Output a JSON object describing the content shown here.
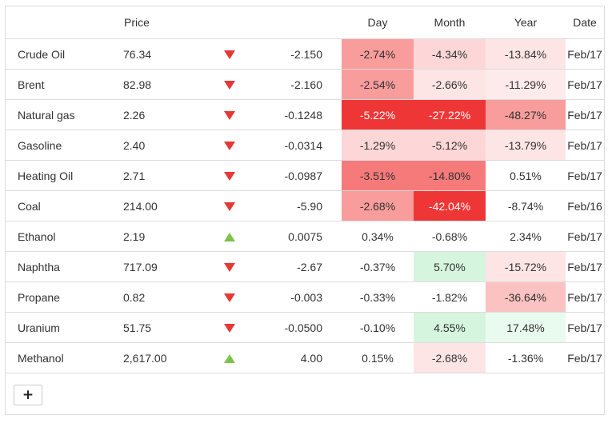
{
  "headers": {
    "price": "Price",
    "day": "Day",
    "month": "Month",
    "year": "Year",
    "date": "Date"
  },
  "colors": {
    "down": "#e53935",
    "up": "#7cc34a",
    "text_on_dark": "#ffffff",
    "text": "#333333"
  },
  "rows": [
    {
      "name": "Crude Oil",
      "price": "76.34",
      "direction": "down",
      "change": "-2.150",
      "day": {
        "value": "-2.74%",
        "bg": "#f99c9c"
      },
      "month": {
        "value": "-4.34%",
        "bg": "#fdd7d7"
      },
      "year": {
        "value": "-13.84%",
        "bg": "#fde5e5"
      },
      "date": "Feb/17"
    },
    {
      "name": "Brent",
      "price": "82.98",
      "direction": "down",
      "change": "-2.160",
      "day": {
        "value": "-2.54%",
        "bg": "#f99c9c"
      },
      "month": {
        "value": "-2.66%",
        "bg": "#fde5e5"
      },
      "year": {
        "value": "-11.29%",
        "bg": "#fdeaea"
      },
      "date": "Feb/17"
    },
    {
      "name": "Natural gas",
      "price": "2.26",
      "direction": "down",
      "change": "-0.1248",
      "day": {
        "value": "-5.22%",
        "bg": "#ef3636"
      },
      "month": {
        "value": "-27.22%",
        "bg": "#ef3636"
      },
      "year": {
        "value": "-48.27%",
        "bg": "#f99c9c"
      },
      "date": "Feb/17"
    },
    {
      "name": "Gasoline",
      "price": "2.40",
      "direction": "down",
      "change": "-0.0314",
      "day": {
        "value": "-1.29%",
        "bg": "#fdd7d7"
      },
      "month": {
        "value": "-5.12%",
        "bg": "#fdd7d7"
      },
      "year": {
        "value": "-13.79%",
        "bg": "#fde5e5"
      },
      "date": "Feb/17"
    },
    {
      "name": "Heating Oil",
      "price": "2.71",
      "direction": "down",
      "change": "-0.0987",
      "day": {
        "value": "-3.51%",
        "bg": "#f77a7a"
      },
      "month": {
        "value": "-14.80%",
        "bg": "#f77a7a"
      },
      "year": {
        "value": "0.51%",
        "bg": ""
      },
      "date": "Feb/17"
    },
    {
      "name": "Coal",
      "price": "214.00",
      "direction": "down",
      "change": "-5.90",
      "day": {
        "value": "-2.68%",
        "bg": "#f99c9c"
      },
      "month": {
        "value": "-42.04%",
        "bg": "#ef3636"
      },
      "year": {
        "value": "-8.74%",
        "bg": ""
      },
      "date": "Feb/16"
    },
    {
      "name": "Ethanol",
      "price": "2.19",
      "direction": "up",
      "change": "0.0075",
      "day": {
        "value": "0.34%",
        "bg": ""
      },
      "month": {
        "value": "-0.68%",
        "bg": ""
      },
      "year": {
        "value": "2.34%",
        "bg": ""
      },
      "date": "Feb/17"
    },
    {
      "name": "Naphtha",
      "price": "717.09",
      "direction": "down",
      "change": "-2.67",
      "day": {
        "value": "-0.37%",
        "bg": ""
      },
      "month": {
        "value": "5.70%",
        "bg": "#d6f5de"
      },
      "year": {
        "value": "-15.72%",
        "bg": "#fde5e5"
      },
      "date": "Feb/17"
    },
    {
      "name": "Propane",
      "price": "0.82",
      "direction": "down",
      "change": "-0.003",
      "day": {
        "value": "-0.33%",
        "bg": ""
      },
      "month": {
        "value": "-1.82%",
        "bg": ""
      },
      "year": {
        "value": "-36.64%",
        "bg": "#fbc2c2"
      },
      "date": "Feb/17"
    },
    {
      "name": "Uranium",
      "price": "51.75",
      "direction": "down",
      "change": "-0.0500",
      "day": {
        "value": "-0.10%",
        "bg": ""
      },
      "month": {
        "value": "4.55%",
        "bg": "#d6f5de"
      },
      "year": {
        "value": "17.48%",
        "bg": "#e9fbee"
      },
      "date": "Feb/17"
    },
    {
      "name": "Methanol",
      "price": "2,617.00",
      "direction": "up",
      "change": "4.00",
      "day": {
        "value": "0.15%",
        "bg": ""
      },
      "month": {
        "value": "-2.68%",
        "bg": "#fde5e5"
      },
      "year": {
        "value": "-1.36%",
        "bg": ""
      },
      "date": "Feb/17"
    }
  ],
  "add_button": {
    "label": "+"
  }
}
